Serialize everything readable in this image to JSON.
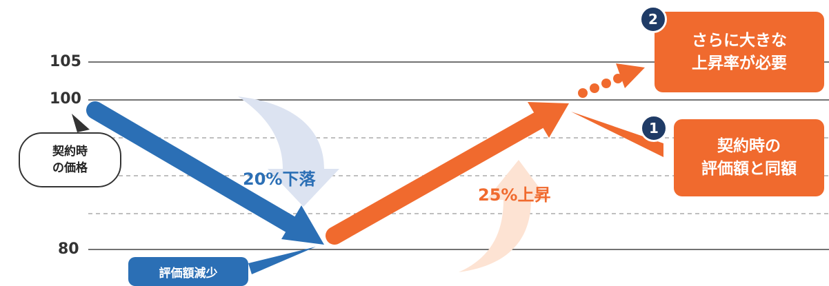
{
  "axis": {
    "tick_labels": [
      "105",
      "100",
      "80"
    ]
  },
  "labels": {
    "drop": "20%下落",
    "rise": "25%上昇",
    "start_bubble_line1": "契約時",
    "start_bubble_line2": "の価格",
    "decrease_tag": "評価額減少"
  },
  "callouts": [
    {
      "number": "1",
      "line1": "契約時の",
      "line2": "評価額と同額"
    },
    {
      "number": "2",
      "line1": "さらに大きな",
      "line2": "上昇率が必要"
    }
  ],
  "colors": {
    "blue": "#2b6fb5",
    "orange": "#f06a2e",
    "badge": "#1f3b66",
    "light_blue": "#dce3f1",
    "light_orange": "#fde3d3"
  }
}
